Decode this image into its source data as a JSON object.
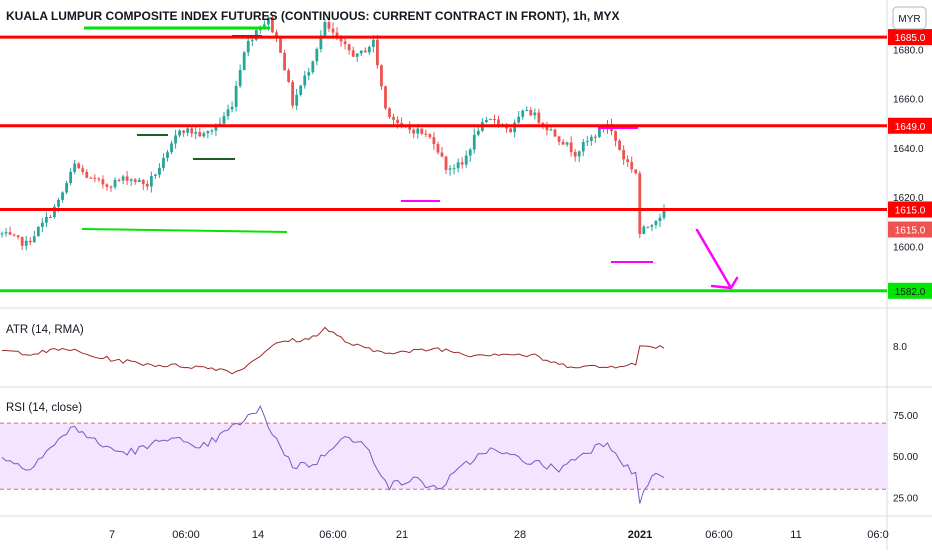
{
  "header": {
    "title": "KUALA LUMPUR COMPOSITE INDEX FUTURES (CONTINUOUS: CURRENT CONTRACT IN FRONT), 1h, MYX",
    "currency_button": "MYR"
  },
  "colors": {
    "bull": "#26a69a",
    "bear": "#ef5350",
    "resistance": "#ff0000",
    "support": "#00e600",
    "marker_green": "#00e600",
    "marker_dark": "#1e5b1e",
    "marker_magenta": "#ff00ff",
    "atr": "#9c2a2a",
    "rsi": "#7e57c2",
    "rsi_band": "#f3e5ff"
  },
  "chart_data": [
    {
      "type": "candlestick",
      "pane": "price",
      "ylim": [
        1575,
        1696
      ],
      "ticks": [
        1600.0,
        1620.0,
        1640.0,
        1660.0,
        1680.0
      ],
      "tick_labels": [
        "1600.0",
        "1620.0",
        "1640.0",
        "1660.0",
        "1680.0"
      ],
      "x_categories": [
        "7",
        "06:00",
        "14",
        "06:00",
        "21",
        "28",
        "2021",
        "06:00",
        "11",
        "06:0"
      ],
      "bar_count": 165,
      "close_path": [
        {
          "bar": 0,
          "price": 1605
        },
        {
          "bar": 6,
          "price": 1601
        },
        {
          "bar": 11,
          "price": 1611
        },
        {
          "bar": 14,
          "price": 1618
        },
        {
          "bar": 18,
          "price": 1633
        },
        {
          "bar": 22,
          "price": 1627
        },
        {
          "bar": 26,
          "price": 1625
        },
        {
          "bar": 31,
          "price": 1628
        },
        {
          "bar": 36,
          "price": 1625
        },
        {
          "bar": 41,
          "price": 1637
        },
        {
          "bar": 44,
          "price": 1648
        },
        {
          "bar": 50,
          "price": 1645
        },
        {
          "bar": 54,
          "price": 1650
        },
        {
          "bar": 57,
          "price": 1658
        },
        {
          "bar": 60,
          "price": 1680
        },
        {
          "bar": 63,
          "price": 1688
        },
        {
          "bar": 66,
          "price": 1692
        },
        {
          "bar": 69,
          "price": 1680
        },
        {
          "bar": 72,
          "price": 1658
        },
        {
          "bar": 76,
          "price": 1672
        },
        {
          "bar": 80,
          "price": 1690
        },
        {
          "bar": 84,
          "price": 1682
        },
        {
          "bar": 88,
          "price": 1677
        },
        {
          "bar": 92,
          "price": 1683
        },
        {
          "bar": 95,
          "price": 1656
        },
        {
          "bar": 99,
          "price": 1648
        },
        {
          "bar": 103,
          "price": 1647
        },
        {
          "bar": 107,
          "price": 1643
        },
        {
          "bar": 110,
          "price": 1632
        },
        {
          "bar": 114,
          "price": 1633
        },
        {
          "bar": 118,
          "price": 1648
        },
        {
          "bar": 122,
          "price": 1652
        },
        {
          "bar": 126,
          "price": 1647
        },
        {
          "bar": 130,
          "price": 1656
        },
        {
          "bar": 134,
          "price": 1650
        },
        {
          "bar": 138,
          "price": 1644
        },
        {
          "bar": 142,
          "price": 1638
        },
        {
          "bar": 146,
          "price": 1644
        },
        {
          "bar": 150,
          "price": 1650
        },
        {
          "bar": 154,
          "price": 1636
        },
        {
          "bar": 157,
          "price": 1630
        },
        {
          "bar": 158,
          "price": 1605
        },
        {
          "bar": 161,
          "price": 1610
        },
        {
          "bar": 164,
          "price": 1614
        }
      ],
      "horizontal_levels": [
        {
          "price": 1685.0,
          "label": "1685.0",
          "kind": "resistance"
        },
        {
          "price": 1649.0,
          "label": "1649.0",
          "kind": "resistance"
        },
        {
          "price": 1615.0,
          "label": "1615.0",
          "kind": "resistance"
        },
        {
          "price": 1582.0,
          "label": "1582.0",
          "kind": "support"
        }
      ],
      "last_price": {
        "price": 1615.0,
        "label": "1615.0"
      }
    },
    {
      "type": "line",
      "pane": "atr",
      "title": "ATR (14, RMA)",
      "ylim": [
        5.0,
        10.2
      ],
      "ticks": [
        8.0
      ],
      "tick_labels": [
        "8.0"
      ],
      "series": [
        {
          "name": "ATR (14, RMA)",
          "points": [
            {
              "bar": 0,
              "value": 7.6
            },
            {
              "bar": 8,
              "value": 7.4
            },
            {
              "bar": 16,
              "value": 7.8
            },
            {
              "bar": 22,
              "value": 7.2
            },
            {
              "bar": 30,
              "value": 6.8
            },
            {
              "bar": 38,
              "value": 6.5
            },
            {
              "bar": 46,
              "value": 6.4
            },
            {
              "bar": 54,
              "value": 6.2
            },
            {
              "bar": 58,
              "value": 5.9
            },
            {
              "bar": 62,
              "value": 6.8
            },
            {
              "bar": 66,
              "value": 7.8
            },
            {
              "bar": 70,
              "value": 8.4
            },
            {
              "bar": 76,
              "value": 8.5
            },
            {
              "bar": 80,
              "value": 9.4
            },
            {
              "bar": 86,
              "value": 8.2
            },
            {
              "bar": 92,
              "value": 7.6
            },
            {
              "bar": 100,
              "value": 7.5
            },
            {
              "bar": 108,
              "value": 7.8
            },
            {
              "bar": 116,
              "value": 7.3
            },
            {
              "bar": 124,
              "value": 7.4
            },
            {
              "bar": 132,
              "value": 7.2
            },
            {
              "bar": 138,
              "value": 6.5
            },
            {
              "bar": 144,
              "value": 6.4
            },
            {
              "bar": 150,
              "value": 6.3
            },
            {
              "bar": 155,
              "value": 6.6
            },
            {
              "bar": 157,
              "value": 6.5
            },
            {
              "bar": 158,
              "value": 7.9
            },
            {
              "bar": 161,
              "value": 8.0
            },
            {
              "bar": 164,
              "value": 7.9
            }
          ]
        }
      ]
    },
    {
      "type": "line",
      "pane": "rsi",
      "title": "RSI (14, close)",
      "ylim": [
        15,
        90
      ],
      "band": [
        30,
        70
      ],
      "dashed_levels": [
        30,
        70
      ],
      "ticks": [
        25.0,
        50.0,
        75.0
      ],
      "tick_labels": [
        "25.00",
        "50.00",
        "75.00"
      ],
      "series": [
        {
          "name": "RSI (14, close)",
          "points": [
            {
              "bar": 0,
              "value": 50
            },
            {
              "bar": 6,
              "value": 42
            },
            {
              "bar": 12,
              "value": 55
            },
            {
              "bar": 18,
              "value": 68
            },
            {
              "bar": 24,
              "value": 57
            },
            {
              "bar": 30,
              "value": 52
            },
            {
              "bar": 36,
              "value": 55
            },
            {
              "bar": 42,
              "value": 63
            },
            {
              "bar": 48,
              "value": 53
            },
            {
              "bar": 54,
              "value": 62
            },
            {
              "bar": 60,
              "value": 72
            },
            {
              "bar": 64,
              "value": 78
            },
            {
              "bar": 68,
              "value": 60
            },
            {
              "bar": 72,
              "value": 44
            },
            {
              "bar": 78,
              "value": 46
            },
            {
              "bar": 84,
              "value": 62
            },
            {
              "bar": 90,
              "value": 56
            },
            {
              "bar": 96,
              "value": 32
            },
            {
              "bar": 102,
              "value": 36
            },
            {
              "bar": 108,
              "value": 30
            },
            {
              "bar": 114,
              "value": 43
            },
            {
              "bar": 120,
              "value": 54
            },
            {
              "bar": 126,
              "value": 50
            },
            {
              "bar": 132,
              "value": 46
            },
            {
              "bar": 138,
              "value": 42
            },
            {
              "bar": 144,
              "value": 52
            },
            {
              "bar": 150,
              "value": 59
            },
            {
              "bar": 154,
              "value": 46
            },
            {
              "bar": 157,
              "value": 38
            },
            {
              "bar": 158,
              "value": 23
            },
            {
              "bar": 161,
              "value": 38
            },
            {
              "bar": 164,
              "value": 38
            }
          ]
        }
      ]
    }
  ]
}
